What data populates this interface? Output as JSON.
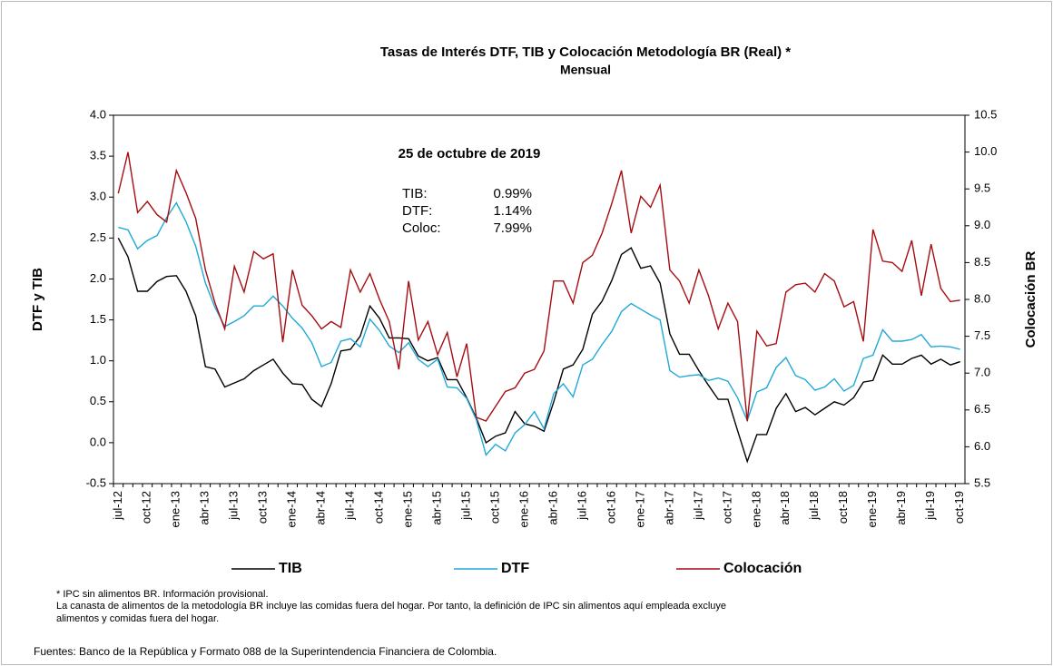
{
  "chart_data": {
    "type": "line",
    "title": "Tasas de Interés  DTF,  TIB  y Colocación Metodología BR  (Real) *",
    "subtitle": "Mensual",
    "y_label": "DTF  y  TIB",
    "y2_label": "Colocación  BR",
    "annotation_title": "25 de octubre de 2019",
    "annotations": [
      {
        "label": "TIB:",
        "value": "0.99%"
      },
      {
        "label": "DTF:",
        "value": "1.14%"
      },
      {
        "label": "Coloc:",
        "value": "7.99%"
      }
    ],
    "notes": [
      "* IPC  sin alimentos  BR.   Información provisional.",
      "La canasta de alimentos  de la metodología BR incluye las  comidas fuera del hogar. Por tanto, la definición de IPC sin alimentos  aquí empleada excluye",
      "alimentos  y comidas fuera del hogar."
    ],
    "source": "Fuentes: Banco de la República y Formato 088 de la Superintendencia Financiera de Colombia.",
    "categories": [
      "jul-12",
      null,
      null,
      "oct-12",
      null,
      null,
      "ene-13",
      null,
      null,
      "abr-13",
      null,
      null,
      "jul-13",
      null,
      null,
      "oct-13",
      null,
      null,
      "ene-14",
      null,
      null,
      "abr-14",
      null,
      null,
      "jul-14",
      null,
      null,
      "oct-14",
      null,
      null,
      "ene-15",
      null,
      null,
      "abr-15",
      null,
      null,
      "jul-15",
      null,
      null,
      "oct-15",
      null,
      null,
      "ene-16",
      null,
      null,
      "abr-16",
      null,
      null,
      "jul-16",
      null,
      null,
      "oct-16",
      null,
      null,
      "ene-17",
      null,
      null,
      "abr-17",
      null,
      null,
      "jul-17",
      null,
      null,
      "oct-17",
      null,
      null,
      "ene-18",
      null,
      null,
      "abr-18",
      null,
      null,
      "jul-18",
      null,
      null,
      "oct-18",
      null,
      null,
      "ene-19",
      null,
      null,
      "abr-19",
      null,
      null,
      "jul-19",
      null,
      null,
      "oct-19"
    ],
    "series": [
      {
        "name": "TIB",
        "color": "#000000",
        "values": [
          2.5,
          2.27,
          1.85,
          1.85,
          1.97,
          2.03,
          2.04,
          1.85,
          1.55,
          0.93,
          0.9,
          0.68,
          0.73,
          0.78,
          0.88,
          0.95,
          1.02,
          0.85,
          0.72,
          0.71,
          0.53,
          0.44,
          0.72,
          1.12,
          1.14,
          1.3,
          1.67,
          1.52,
          1.28,
          1.28,
          1.27,
          1.06,
          1.0,
          1.04,
          0.77,
          0.77,
          0.55,
          0.3,
          0.0,
          0.08,
          0.12,
          0.38,
          0.23,
          0.2,
          0.14,
          0.5,
          0.9,
          0.95,
          1.14,
          1.57,
          1.73,
          1.98,
          2.3,
          2.38,
          2.13,
          2.16,
          1.95,
          1.33,
          1.08,
          1.08,
          0.88,
          0.7,
          0.53,
          0.53,
          0.15,
          -0.23,
          0.1,
          0.1,
          0.42,
          0.6,
          0.38,
          0.43,
          0.34,
          0.42,
          0.5,
          0.46,
          0.55,
          0.74,
          0.76,
          1.07,
          0.96,
          0.96,
          1.03,
          1.07,
          0.96,
          1.02,
          0.95,
          0.99
        ]
      },
      {
        "name": "DTF",
        "color": "#1fa9d8",
        "values": [
          2.63,
          2.6,
          2.37,
          2.47,
          2.53,
          2.75,
          2.93,
          2.7,
          2.4,
          1.95,
          1.65,
          1.42,
          1.48,
          1.55,
          1.67,
          1.67,
          1.79,
          1.67,
          1.52,
          1.4,
          1.22,
          0.93,
          0.98,
          1.24,
          1.27,
          1.17,
          1.51,
          1.37,
          1.18,
          1.1,
          1.22,
          1.02,
          0.93,
          1.02,
          0.68,
          0.67,
          0.54,
          0.28,
          -0.15,
          -0.02,
          -0.1,
          0.12,
          0.22,
          0.38,
          0.17,
          0.6,
          0.72,
          0.56,
          0.95,
          1.02,
          1.2,
          1.36,
          1.6,
          1.7,
          1.63,
          1.56,
          1.5,
          0.88,
          0.8,
          0.82,
          0.83,
          0.76,
          0.79,
          0.75,
          0.55,
          0.27,
          0.62,
          0.67,
          0.92,
          1.04,
          0.82,
          0.77,
          0.64,
          0.68,
          0.78,
          0.63,
          0.7,
          1.03,
          1.07,
          1.38,
          1.24,
          1.24,
          1.26,
          1.32,
          1.17,
          1.18,
          1.17,
          1.14
        ]
      },
      {
        "name": "Colocación",
        "color": "#a50d12",
        "axis": "y2",
        "values": [
          9.44,
          10.0,
          9.18,
          9.33,
          9.15,
          9.05,
          9.75,
          9.45,
          9.1,
          8.4,
          7.95,
          7.6,
          8.45,
          8.1,
          8.65,
          8.55,
          8.62,
          7.42,
          8.4,
          7.92,
          7.78,
          7.6,
          7.7,
          7.62,
          8.4,
          8.1,
          8.35,
          8.0,
          7.7,
          7.05,
          8.25,
          7.45,
          7.7,
          7.25,
          7.55,
          6.95,
          7.4,
          6.4,
          6.35,
          6.55,
          6.75,
          6.8,
          7.0,
          7.05,
          7.3,
          8.25,
          8.25,
          7.95,
          8.5,
          8.6,
          8.9,
          9.3,
          9.75,
          8.9,
          9.4,
          9.25,
          9.55,
          8.4,
          8.25,
          7.95,
          8.4,
          8.05,
          7.6,
          7.95,
          7.7,
          6.35,
          7.57,
          7.37,
          7.4,
          8.1,
          8.2,
          8.22,
          8.1,
          8.35,
          8.25,
          7.9,
          7.97,
          7.43,
          8.95,
          8.52,
          8.5,
          8.38,
          8.8,
          8.05,
          8.75,
          8.15,
          7.97,
          7.99
        ]
      }
    ],
    "ylim": [
      -0.5,
      4.0
    ],
    "yticks": [
      -0.5,
      {
        "value": 0,
        "label": "0.0"
      },
      0.5,
      {
        "value": 1,
        "label": "1.0"
      },
      1.5,
      {
        "value": 2,
        "label": "2.0"
      },
      2.5,
      {
        "value": 3,
        "label": "3.0"
      },
      3.5,
      {
        "value": 4,
        "label": "4.0"
      }
    ],
    "y2lim": [
      5.5,
      10.5
    ],
    "y2ticks": [
      5.5,
      {
        "value": 6,
        "label": "6.0"
      },
      6.5,
      {
        "value": 7,
        "label": "7.0"
      },
      7.5,
      {
        "value": 8,
        "label": "8.0"
      },
      8.5,
      {
        "value": 9,
        "label": "9.0"
      },
      9.5,
      {
        "value": 10,
        "label": "10.0"
      },
      10.5
    ],
    "grid": false,
    "legend": "bottom"
  }
}
